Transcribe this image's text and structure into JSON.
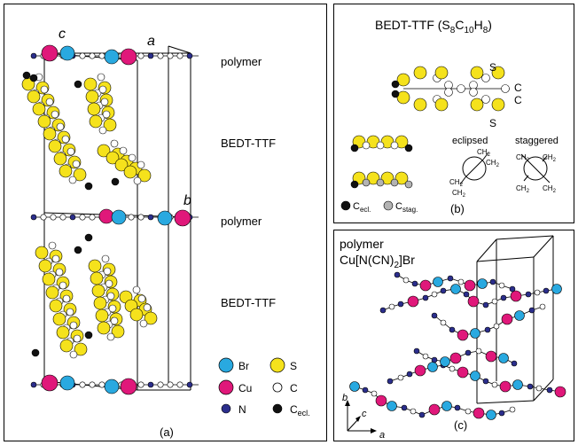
{
  "panel_a": {
    "label": "(a)",
    "axes": {
      "c": "c",
      "a": "a",
      "b": "b"
    },
    "layers": [
      "polymer",
      "BEDT-TTF",
      "polymer",
      "BEDT-TTF"
    ],
    "legend": [
      {
        "symbol": "Br",
        "color": "#29a9e0",
        "filled": true
      },
      {
        "symbol": "S",
        "color": "#f5e21c",
        "filled": true
      },
      {
        "symbol": "Cu",
        "color": "#e0187a",
        "filled": true
      },
      {
        "symbol": "C",
        "color": "#ffffff",
        "filled": false
      },
      {
        "symbol": "N",
        "color": "#2b2e8c",
        "filled": true
      },
      {
        "symbol": "C",
        "sub": "ecl.",
        "color": "#111111",
        "filled": true
      }
    ]
  },
  "panel_b": {
    "label": "(b)",
    "title_main": "BEDT-TTF (S",
    "title_sub1": "8",
    "title_mid1": "C",
    "title_sub2": "10",
    "title_mid2": "H",
    "title_sub3": "8",
    "title_end": ")",
    "atom_labels": {
      "s_top": "S",
      "c1": "C",
      "c2": "C",
      "s_bottom": "S"
    },
    "conformations": {
      "eclipsed": "eclipsed",
      "staggered": "staggered"
    },
    "group_ch2": "CH",
    "group_sub": "2",
    "legend": [
      {
        "symbol": "C",
        "sub": "ecl.",
        "color": "#111111"
      },
      {
        "symbol": "C",
        "sub": "stag.",
        "color": "#b3b3b3"
      }
    ]
  },
  "panel_c": {
    "label": "(c)",
    "title_line1": "polymer",
    "formula_main": "Cu[N(CN)",
    "formula_sub": "2",
    "formula_end": "]Br",
    "axes": {
      "b": "b",
      "c": "c",
      "a": "a"
    }
  },
  "colors": {
    "br": "#29a9e0",
    "cu": "#e0187a",
    "s": "#f5e21c",
    "n": "#2b2e8c",
    "c_ecl": "#111111",
    "c_stag": "#b3b3b3"
  }
}
